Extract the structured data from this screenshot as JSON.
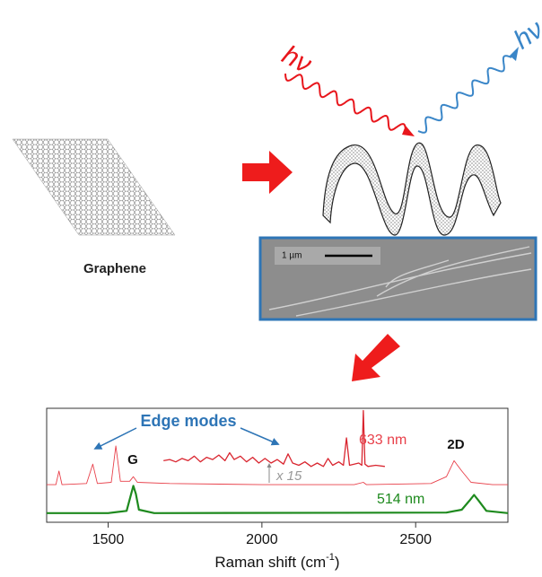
{
  "diagram": {
    "photon_in": "hν",
    "photon_out": "hν",
    "material": "Graphene",
    "scale_bar": "1 µm"
  },
  "chart_data": {
    "type": "line",
    "x_label": "Raman shift (cm",
    "x_label_exponent": "-1",
    "x_label_end": ")",
    "xlim": [
      1300,
      2800
    ],
    "xticks": [
      1500,
      2000,
      2500
    ],
    "ylim": [
      0,
      10
    ],
    "annotations": {
      "edge_modes": "Edge modes",
      "g_band": "G",
      "2d_band": "2D",
      "zoom": "x 15"
    },
    "series": [
      {
        "name": "633 nm",
        "color": "#e8404a",
        "width": 0.9,
        "x": [
          1300,
          1330,
          1340,
          1350,
          1430,
          1450,
          1465,
          1510,
          1525,
          1540,
          1570,
          1582,
          1595,
          1700,
          2000,
          2300,
          2330,
          2340,
          2550,
          2600,
          2625,
          2650,
          2680,
          2750,
          2800
        ],
        "values": [
          3.3,
          3.3,
          4.5,
          3.3,
          3.4,
          5.1,
          3.4,
          3.5,
          6.7,
          3.6,
          3.6,
          4.0,
          3.5,
          3.4,
          3.3,
          3.3,
          3.5,
          3.3,
          3.4,
          4.0,
          5.4,
          4.5,
          3.5,
          3.3,
          3.3
        ]
      },
      {
        "name": "514 nm",
        "color": "#1e8a1e",
        "width": 2.2,
        "x": [
          1300,
          1500,
          1560,
          1575,
          1582,
          1590,
          1600,
          1650,
          2600,
          2650,
          2675,
          2690,
          2705,
          2730,
          2800
        ],
        "values": [
          0.8,
          0.8,
          1.0,
          2.5,
          3.2,
          2.5,
          1.1,
          0.8,
          0.85,
          1.1,
          1.9,
          2.4,
          1.9,
          1.0,
          0.8
        ]
      },
      {
        "color": "#d9252f",
        "width": 1.3,
        "x": [
          1680,
          1700,
          1720,
          1740,
          1760,
          1780,
          1800,
          1820,
          1840,
          1860,
          1880,
          1895,
          1910,
          1930,
          1950,
          1970,
          1990,
          2010,
          2030,
          2050,
          2070,
          2085,
          2100,
          2120,
          2140,
          2160,
          2180,
          2200,
          2215,
          2230,
          2250,
          2265,
          2275,
          2285,
          2300,
          2315,
          2325,
          2330,
          2335,
          2345,
          2370,
          2400
        ],
        "values": [
          5.4,
          5.5,
          5.3,
          5.6,
          5.4,
          5.8,
          5.3,
          5.7,
          5.5,
          5.9,
          5.4,
          6.1,
          5.5,
          5.8,
          5.3,
          5.7,
          5.2,
          5.6,
          5.2,
          5.5,
          5.1,
          6.0,
          5.2,
          5.0,
          5.3,
          4.9,
          5.2,
          4.9,
          5.6,
          5.0,
          5.3,
          5.0,
          7.4,
          5.0,
          5.1,
          5.2,
          5.0,
          9.8,
          5.1,
          4.9,
          5.0,
          4.9
        ]
      }
    ]
  }
}
